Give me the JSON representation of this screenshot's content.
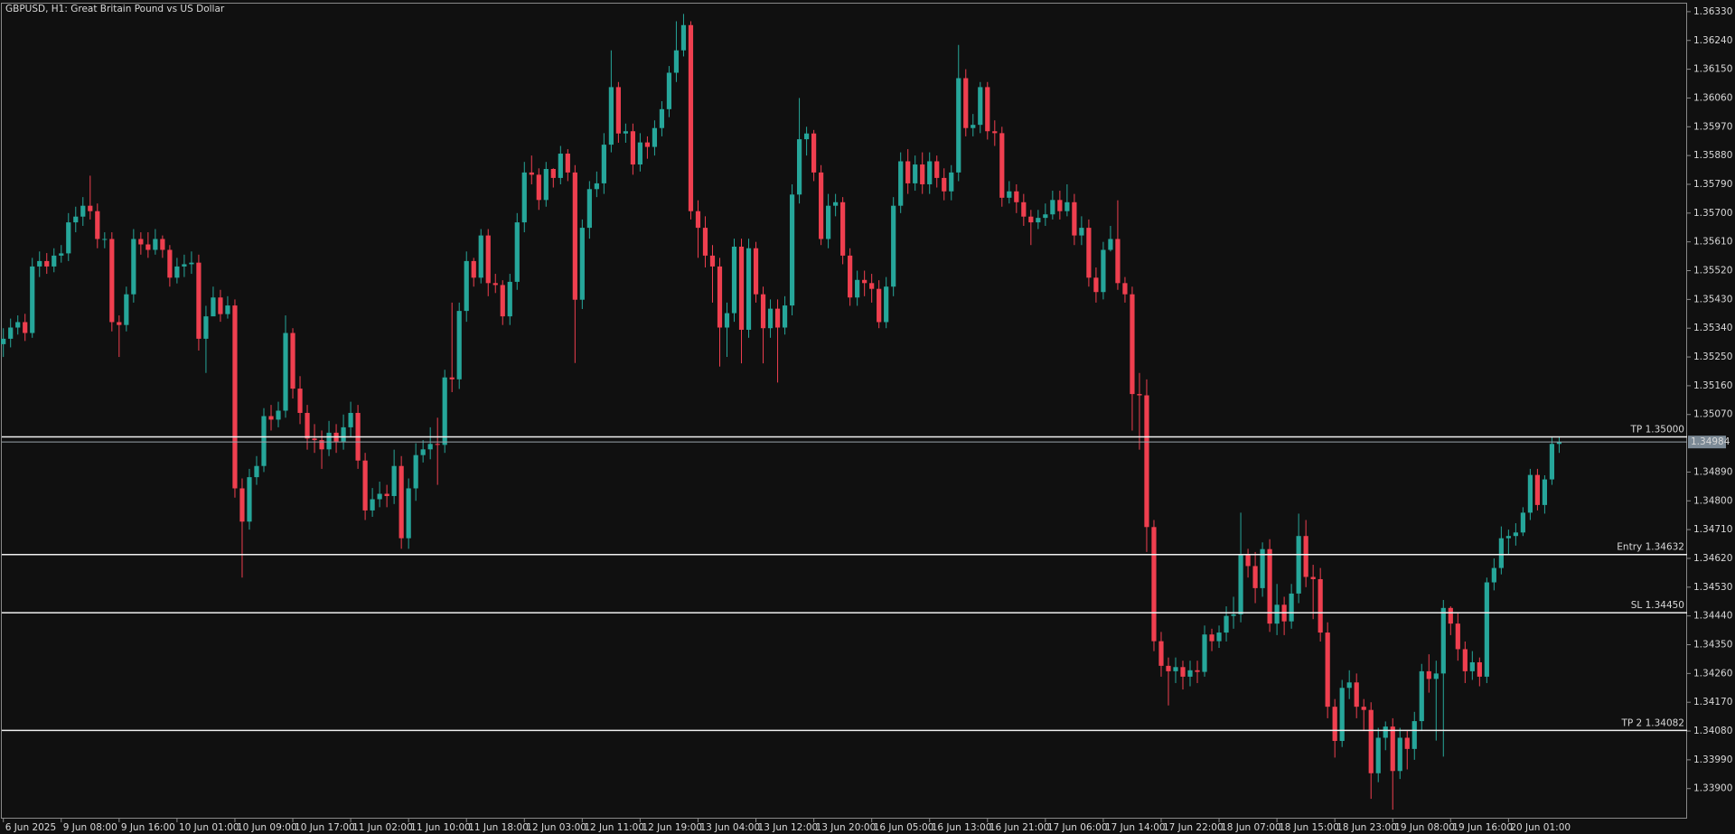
{
  "chart_data": {
    "type": "candlestick",
    "title": "GBPUSD, H1:  Great Britain Pound vs US Dollar",
    "up_color": "#26a69a",
    "down_color": "#ef3f4f",
    "categories": [
      "6 Jun 2025",
      null,
      null,
      null,
      null,
      null,
      null,
      null,
      "9 Jun 08:00",
      null,
      null,
      null,
      null,
      null,
      null,
      null,
      "9 Jun 16:00",
      null,
      null,
      null,
      null,
      null,
      null,
      null,
      "10 Jun 01:00",
      null,
      null,
      null,
      null,
      null,
      null,
      null,
      "10 Jun 09:00",
      null,
      null,
      null,
      null,
      null,
      null,
      null,
      "10 Jun 17:00",
      null,
      null,
      null,
      null,
      null,
      null,
      null,
      "11 Jun 02:00",
      null,
      null,
      null,
      null,
      null,
      null,
      null,
      "11 Jun 10:00",
      null,
      null,
      null,
      null,
      null,
      null,
      null,
      "11 Jun 18:00",
      null,
      null,
      null,
      null,
      null,
      null,
      null,
      "12 Jun 03:00",
      null,
      null,
      null,
      null,
      null,
      null,
      null,
      "12 Jun 11:00",
      null,
      null,
      null,
      null,
      null,
      null,
      null,
      "12 Jun 19:00",
      null,
      null,
      null,
      null,
      null,
      null,
      null,
      "13 Jun 04:00",
      null,
      null,
      null,
      null,
      null,
      null,
      null,
      "13 Jun 12:00",
      null,
      null,
      null,
      null,
      null,
      null,
      null,
      "13 Jun 20:00",
      null,
      null,
      null,
      null,
      null,
      null,
      null,
      "16 Jun 05:00",
      null,
      null,
      null,
      null,
      null,
      null,
      null,
      "16 Jun 13:00",
      null,
      null,
      null,
      null,
      null,
      null,
      null,
      "16 Jun 21:00",
      null,
      null,
      null,
      null,
      null,
      null,
      null,
      "17 Jun 06:00",
      null,
      null,
      null,
      null,
      null,
      null,
      null,
      "17 Jun 14:00",
      null,
      null,
      null,
      null,
      null,
      null,
      null,
      "17 Jun 22:00",
      null,
      null,
      null,
      null,
      null,
      null,
      null,
      "18 Jun 07:00",
      null,
      null,
      null,
      null,
      null,
      null,
      null,
      "18 Jun 15:00",
      null,
      null,
      null,
      null,
      null,
      null,
      null,
      "18 Jun 23:00",
      null,
      null,
      null,
      null,
      null,
      null,
      null,
      "19 Jun 08:00",
      null,
      null,
      null,
      null,
      null,
      null,
      null,
      "19 Jun 16:00",
      null,
      null,
      null,
      null,
      null,
      null,
      null,
      "20 Jun 01:00",
      null,
      null,
      null,
      null,
      null,
      null,
      null
    ],
    "open": [
      1.3529,
      1.35307,
      1.35342,
      1.35359,
      1.35325,
      1.35533,
      1.3555,
      1.35533,
      1.35567,
      1.35574,
      1.35671,
      1.35689,
      1.35723,
      1.35706,
      1.35619,
      1.35619,
      1.35359,
      1.3535,
      1.35446,
      1.35619,
      1.35602,
      1.35585,
      1.35619,
      1.35585,
      1.35498,
      1.35533,
      1.3554,
      1.35545,
      1.35307,
      1.35377,
      1.35436,
      1.35384,
      1.35411,
      1.34839,
      1.34735,
      1.34874,
      1.34909,
      1.35065,
      1.35054,
      1.35082,
      1.35325,
      1.35151,
      1.35075,
      1.34995,
      1.3499,
      1.34961,
      1.35013,
      1.34985,
      1.3503,
      1.35075,
      1.34926,
      1.3477,
      1.34805,
      1.34822,
      1.34815,
      1.34909,
      1.34683,
      1.34839,
      1.34943,
      1.34961,
      1.34978,
      1.34975,
      1.35186,
      1.3518,
      1.35394,
      1.3555,
      1.35498,
      1.3563,
      1.35481,
      1.35475,
      1.35377,
      1.35485,
      1.35671,
      1.35827,
      1.3582,
      1.35741,
      1.35838,
      1.3581,
      1.35886,
      1.35827,
      1.35429,
      1.35654,
      1.35775,
      1.35793,
      1.35914,
      1.36094,
      1.35949,
      1.35956,
      1.35852,
      1.35921,
      1.35907,
      1.35966,
      1.36025,
      1.36139,
      1.36209,
      1.36288,
      1.35706,
      1.35654,
      1.35567,
      1.35533,
      1.35342,
      1.35387,
      1.35595,
      1.35335,
      1.3559,
      1.35446,
      1.3534,
      1.35401,
      1.35342,
      1.35411,
      1.35758,
      1.35931,
      1.35949,
      1.35827,
      1.35619,
      1.35723,
      1.35734,
      1.35567,
      1.35436,
      1.35491,
      1.35481,
      1.35463,
      1.35359,
      1.3547,
      1.35723,
      1.35862,
      1.35793,
      1.35852,
      1.3579,
      1.35862,
      1.3581,
      1.35768,
      1.35827,
      1.36122,
      1.35966,
      1.35976,
      1.36094,
      1.35956,
      1.3595,
      1.35748,
      1.35768,
      1.35734,
      1.35689,
      1.35671,
      1.35685,
      1.35696,
      1.35741,
      1.35706,
      1.35734,
      1.3563,
      1.35654,
      1.35498,
      1.35453,
      1.35585,
      1.35619,
      1.35481,
      1.35446,
      1.35134,
      1.3513,
      1.34718,
      1.34361,
      1.34284,
      1.34267,
      1.3428,
      1.3425,
      1.3427,
      1.34265,
      1.34382,
      1.34361,
      1.34388,
      1.3444,
      1.34445,
      1.34631,
      1.34596,
      1.34527,
      1.34649,
      1.34416,
      1.34475,
      1.34423,
      1.3451,
      1.3469,
      1.34562,
      1.34555,
      1.34388,
      1.34156,
      1.34049,
      1.34215,
      1.34232,
      1.34156,
      1.34146,
      1.33948,
      1.34059,
      1.34094,
      1.33955,
      1.34059,
      1.34024,
      1.34111,
      1.34267,
      1.34243,
      1.3426,
      1.34465,
      1.34416,
      1.34336,
      1.34267,
      1.34295,
      1.3425,
      1.34545,
      1.3459,
      1.34683,
      1.3469,
      1.34701,
      1.34763,
      1.34881,
      1.34787,
      1.34867,
      1.34978
    ],
    "high": [
      1.3534,
      1.3537,
      1.3538,
      1.35385,
      1.3556,
      1.3558,
      1.35575,
      1.3559,
      1.356,
      1.357,
      1.3572,
      1.3575,
      1.35817,
      1.3573,
      1.3564,
      1.3564,
      1.3538,
      1.3547,
      1.3565,
      1.3564,
      1.3564,
      1.3565,
      1.3563,
      1.356,
      1.3556,
      1.3557,
      1.3558,
      1.3557,
      1.3541,
      1.3547,
      1.3546,
      1.3544,
      1.3543,
      1.3487,
      1.349,
      1.3494,
      1.3509,
      1.351,
      1.3511,
      1.3538,
      1.3534,
      1.3519,
      1.351,
      1.3504,
      1.3502,
      1.3505,
      1.3504,
      1.3507,
      1.3511,
      1.351,
      1.3495,
      1.3484,
      1.3486,
      1.3485,
      1.3496,
      1.3494,
      1.3487,
      1.3498,
      1.3499,
      1.3503,
      1.3506,
      1.3521,
      1.3542,
      1.3542,
      1.3558,
      1.3556,
      1.3565,
      1.3565,
      1.3551,
      1.3549,
      1.3551,
      1.357,
      1.3586,
      1.3588,
      1.3584,
      1.3586,
      1.3584,
      1.3591,
      1.359,
      1.3585,
      1.3568,
      1.358,
      1.3583,
      1.3595,
      1.36209,
      1.3611,
      1.3598,
      1.3598,
      1.3595,
      1.3594,
      1.3599,
      1.3605,
      1.3616,
      1.363,
      1.36323,
      1.363,
      1.3574,
      1.3569,
      1.356,
      1.3556,
      1.3542,
      1.3562,
      1.3562,
      1.3562,
      1.3561,
      1.3547,
      1.3543,
      1.3543,
      1.3544,
      1.3579,
      1.3606,
      1.3597,
      1.3596,
      1.3585,
      1.3576,
      1.3576,
      1.3575,
      1.3559,
      1.3552,
      1.3552,
      1.3551,
      1.3549,
      1.355,
      1.3575,
      1.3589,
      1.359,
      1.3588,
      1.3589,
      1.3589,
      1.3588,
      1.3584,
      1.3585,
      1.36226,
      1.3615,
      1.3601,
      1.3611,
      1.3611,
      1.3599,
      1.3597,
      1.358,
      1.3579,
      1.3576,
      1.3571,
      1.3571,
      1.3573,
      1.3577,
      1.3577,
      1.3579,
      1.3576,
      1.3569,
      1.3568,
      1.3553,
      1.3561,
      1.3566,
      1.3574,
      1.355,
      1.3547,
      1.352,
      1.3518,
      1.3474,
      1.3439,
      1.3431,
      1.3431,
      1.343,
      1.343,
      1.343,
      1.3441,
      1.344,
      1.3441,
      1.3447,
      1.345,
      1.34763,
      1.3465,
      1.3464,
      1.3467,
      1.3468,
      1.3454,
      1.345,
      1.3454,
      1.3476,
      1.3474,
      1.346,
      1.3459,
      1.3442,
      1.3418,
      1.3424,
      1.3427,
      1.3426,
      1.3418,
      1.3417,
      1.3409,
      1.3411,
      1.3412,
      1.3409,
      1.3408,
      1.3414,
      1.3429,
      1.3432,
      1.343,
      1.3449,
      1.3447,
      1.3445,
      1.3436,
      1.3433,
      1.3431,
      1.3456,
      1.3462,
      1.3472,
      1.3471,
      1.3473,
      1.3478,
      1.349,
      1.349,
      1.3488,
      1.35,
      1.35
    ],
    "low": [
      1.3525,
      1.3528,
      1.3532,
      1.353,
      1.3531,
      1.355,
      1.3551,
      1.35515,
      1.35545,
      1.3555,
      1.3564,
      1.3566,
      1.3568,
      1.3559,
      1.3559,
      1.3533,
      1.3525,
      1.3533,
      1.3542,
      1.3557,
      1.3556,
      1.3557,
      1.3556,
      1.3547,
      1.3548,
      1.355,
      1.3551,
      1.3527,
      1.352,
      1.354,
      1.3536,
      1.3537,
      1.3481,
      1.3456,
      1.3471,
      1.3485,
      1.3489,
      1.3502,
      1.3503,
      1.3506,
      1.3512,
      1.3504,
      1.3496,
      1.3495,
      1.349,
      1.3494,
      1.3495,
      1.3496,
      1.35,
      1.349,
      1.3474,
      1.3475,
      1.3478,
      1.3478,
      1.3479,
      1.3465,
      1.3465,
      1.348,
      1.3492,
      1.3493,
      1.3485,
      1.3495,
      1.3514,
      1.3515,
      1.3536,
      1.3547,
      1.3548,
      1.3544,
      1.3545,
      1.3535,
      1.3535,
      1.3546,
      1.3564,
      1.3579,
      1.3571,
      1.3572,
      1.3578,
      1.3579,
      1.358,
      1.35231,
      1.354,
      1.3562,
      1.3575,
      1.3576,
      1.3589,
      1.3592,
      1.3592,
      1.3582,
      1.3583,
      1.3587,
      1.3588,
      1.3594,
      1.36,
      1.3611,
      1.3619,
      1.3568,
      1.3556,
      1.3553,
      1.3542,
      1.3522,
      1.3525,
      1.3536,
      1.3523,
      1.3531,
      1.3542,
      1.3523,
      1.3531,
      1.3517,
      1.3532,
      1.3538,
      1.3573,
      1.3588,
      1.358,
      1.356,
      1.3559,
      1.3569,
      1.3554,
      1.3541,
      1.3541,
      1.3544,
      1.3542,
      1.3534,
      1.3534,
      1.3544,
      1.357,
      1.3576,
      1.3577,
      1.3576,
      1.3576,
      1.3578,
      1.3574,
      1.3574,
      1.358,
      1.3594,
      1.3594,
      1.3595,
      1.3593,
      1.3591,
      1.3572,
      1.3573,
      1.357,
      1.3566,
      1.356,
      1.3565,
      1.3566,
      1.3568,
      1.3568,
      1.3569,
      1.356,
      1.356,
      1.3547,
      1.3542,
      1.3543,
      1.3558,
      1.3546,
      1.3542,
      1.3502,
      1.3496,
      1.3464,
      1.3433,
      1.3425,
      1.3416,
      1.3423,
      1.3421,
      1.3422,
      1.3423,
      1.3425,
      1.3433,
      1.3434,
      1.3436,
      1.344,
      1.3442,
      1.3456,
      1.3448,
      1.345,
      1.3439,
      1.3438,
      1.3438,
      1.344,
      1.3448,
      1.3453,
      1.3443,
      1.3436,
      1.3412,
      1.33997,
      1.3403,
      1.3418,
      1.3412,
      1.3408,
      1.33868,
      1.3392,
      1.3402,
      1.33834,
      1.3393,
      1.3396,
      1.3399,
      1.3408,
      1.342,
      1.3405,
      1.34,
      1.3438,
      1.343,
      1.3423,
      1.3424,
      1.3422,
      1.3423,
      1.3452,
      1.3457,
      1.3463,
      1.3466,
      1.3469,
      1.3474,
      1.3477,
      1.3476,
      1.3485,
      1.3495
    ],
    "close": [
      1.35307,
      1.35342,
      1.35359,
      1.35325,
      1.35533,
      1.3555,
      1.35533,
      1.35567,
      1.35574,
      1.35671,
      1.35689,
      1.35723,
      1.35706,
      1.35619,
      1.35619,
      1.35359,
      1.3535,
      1.35446,
      1.35619,
      1.35602,
      1.35585,
      1.35619,
      1.35585,
      1.35498,
      1.35533,
      1.3554,
      1.35545,
      1.35307,
      1.35377,
      1.35436,
      1.35384,
      1.35411,
      1.34839,
      1.34735,
      1.34874,
      1.34909,
      1.35065,
      1.35054,
      1.35082,
      1.35325,
      1.35151,
      1.35075,
      1.34995,
      1.3499,
      1.34961,
      1.35013,
      1.34985,
      1.3503,
      1.35075,
      1.34926,
      1.3477,
      1.34805,
      1.34822,
      1.34815,
      1.34909,
      1.34683,
      1.34839,
      1.34943,
      1.34961,
      1.34978,
      1.34975,
      1.35186,
      1.3518,
      1.35394,
      1.3555,
      1.35498,
      1.3563,
      1.35481,
      1.35475,
      1.35377,
      1.35485,
      1.35671,
      1.35827,
      1.3582,
      1.35741,
      1.35838,
      1.3581,
      1.35886,
      1.35827,
      1.35429,
      1.35654,
      1.35775,
      1.35793,
      1.35914,
      1.36094,
      1.35949,
      1.35956,
      1.35852,
      1.35921,
      1.35907,
      1.35966,
      1.36025,
      1.36139,
      1.36209,
      1.36288,
      1.35706,
      1.35654,
      1.35567,
      1.35533,
      1.35342,
      1.35387,
      1.35595,
      1.35335,
      1.3559,
      1.35446,
      1.3534,
      1.35401,
      1.35342,
      1.35411,
      1.35758,
      1.35931,
      1.35949,
      1.35827,
      1.35619,
      1.35723,
      1.35734,
      1.35567,
      1.35436,
      1.35491,
      1.35481,
      1.35463,
      1.35359,
      1.3547,
      1.35723,
      1.35862,
      1.35793,
      1.35852,
      1.3579,
      1.35862,
      1.3581,
      1.35768,
      1.35827,
      1.36122,
      1.35966,
      1.35976,
      1.36094,
      1.35956,
      1.3595,
      1.35748,
      1.35768,
      1.35734,
      1.35689,
      1.35671,
      1.35685,
      1.35696,
      1.35741,
      1.35706,
      1.35734,
      1.3563,
      1.35654,
      1.35498,
      1.35453,
      1.35585,
      1.35619,
      1.35481,
      1.35446,
      1.35134,
      1.3513,
      1.34718,
      1.34361,
      1.34284,
      1.34267,
      1.3428,
      1.3425,
      1.3427,
      1.34265,
      1.34382,
      1.34361,
      1.34388,
      1.3444,
      1.34445,
      1.34631,
      1.34596,
      1.34527,
      1.34649,
      1.34416,
      1.34475,
      1.34423,
      1.3451,
      1.3469,
      1.34562,
      1.34555,
      1.34388,
      1.34156,
      1.34049,
      1.34215,
      1.34232,
      1.34156,
      1.34146,
      1.33948,
      1.34059,
      1.34094,
      1.33955,
      1.34059,
      1.34024,
      1.34111,
      1.34267,
      1.34243,
      1.3426,
      1.34465,
      1.34416,
      1.34336,
      1.34267,
      1.34295,
      1.3425,
      1.34545,
      1.3459,
      1.34683,
      1.3469,
      1.34701,
      1.34763,
      1.34881,
      1.34787,
      1.34867,
      1.34978,
      1.34984
    ],
    "ylim": [
      1.33806,
      1.36358
    ],
    "yticks": [
      {
        "value": 1.3633,
        "label": "1.36330"
      },
      {
        "value": 1.3624,
        "label": "1.36240"
      },
      {
        "value": 1.3615,
        "label": "1.36150"
      },
      {
        "value": 1.3606,
        "label": "1.36060"
      },
      {
        "value": 1.3597,
        "label": "1.35970"
      },
      {
        "value": 1.3588,
        "label": "1.35880"
      },
      {
        "value": 1.3579,
        "label": "1.35790"
      },
      {
        "value": 1.357,
        "label": "1.35700"
      },
      {
        "value": 1.3561,
        "label": "1.35610"
      },
      {
        "value": 1.3552,
        "label": "1.35520"
      },
      {
        "value": 1.3543,
        "label": "1.35430"
      },
      {
        "value": 1.3534,
        "label": "1.35340"
      },
      {
        "value": 1.3525,
        "label": "1.35250"
      },
      {
        "value": 1.3516,
        "label": "1.35160"
      },
      {
        "value": 1.3507,
        "label": "1.35070"
      },
      {
        "value": 1.3489,
        "label": "1.34890"
      },
      {
        "value": 1.348,
        "label": "1.34800"
      },
      {
        "value": 1.3471,
        "label": "1.34710"
      },
      {
        "value": 1.3462,
        "label": "1.34620"
      },
      {
        "value": 1.3453,
        "label": "1.34530"
      },
      {
        "value": 1.3444,
        "label": "1.34440"
      },
      {
        "value": 1.3435,
        "label": "1.34350"
      },
      {
        "value": 1.3426,
        "label": "1.34260"
      },
      {
        "value": 1.3417,
        "label": "1.34170"
      },
      {
        "value": 1.3408,
        "label": "1.34080"
      },
      {
        "value": 1.3399,
        "label": "1.33990"
      },
      {
        "value": 1.339,
        "label": "1.33900"
      }
    ],
    "levels": [
      {
        "value": 1.35,
        "label": "TP 1.35000"
      },
      {
        "value": 1.34632,
        "label": "Entry 1.34632"
      },
      {
        "value": 1.3445,
        "label": "SL 1.34450"
      },
      {
        "value": 1.34082,
        "label": "TP 2 1.34082"
      }
    ],
    "last_price": 1.34984
  }
}
